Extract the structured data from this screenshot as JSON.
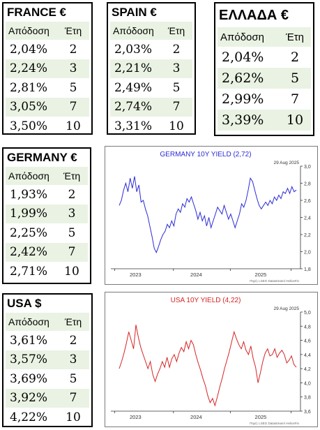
{
  "tables": {
    "france": {
      "title": "FRANCE €",
      "h1": "Απόδοση",
      "h2": "Έτη",
      "rows": [
        {
          "y": "2,04%",
          "t": "2"
        },
        {
          "y": "2,24%",
          "t": "3"
        },
        {
          "y": "2,81%",
          "t": "5"
        },
        {
          "y": "3,05%",
          "t": "7"
        },
        {
          "y": "3,50%",
          "t": "10"
        }
      ]
    },
    "spain": {
      "title": "SPAIN €",
      "h1": "Απόδοση",
      "h2": "Έτη",
      "rows": [
        {
          "y": "2,03%",
          "t": "2"
        },
        {
          "y": "2,21%",
          "t": "3"
        },
        {
          "y": "2,49%",
          "t": "5"
        },
        {
          "y": "2,74%",
          "t": "7"
        },
        {
          "y": "3,31%",
          "t": "10"
        }
      ]
    },
    "greece": {
      "title": "ΕΛΛΑΔΑ €",
      "h1": "Απόδοση",
      "h2": "Έτη",
      "rows": [
        {
          "y": "2,04%",
          "t": "2"
        },
        {
          "y": "2,62%",
          "t": "5"
        },
        {
          "y": "2,99%",
          "t": "7"
        },
        {
          "y": "3,39%",
          "t": "10"
        }
      ]
    },
    "germany": {
      "title": "GERMANY €",
      "h1": "Απόδοση",
      "h2": "Έτη",
      "rows": [
        {
          "y": "1,93%",
          "t": "2"
        },
        {
          "y": "1,99%",
          "t": "3"
        },
        {
          "y": "2,25%",
          "t": "5"
        },
        {
          "y": "2,42%",
          "t": "7"
        },
        {
          "y": "2,71%",
          "t": "10"
        }
      ]
    },
    "usa": {
      "title": "USA $",
      "h1": "Απόδοση",
      "h2": "Έτη",
      "rows": [
        {
          "y": "3,61%",
          "t": "2"
        },
        {
          "y": "3,57%",
          "t": "3"
        },
        {
          "y": "3,69%",
          "t": "5"
        },
        {
          "y": "3,92%",
          "t": "7"
        },
        {
          "y": "4,22%",
          "t": "10"
        }
      ]
    }
  },
  "chart_data": [
    {
      "type": "line",
      "title": "GERMANY 10Y YIELD  (2,72)",
      "date": "29 Aug 2025",
      "source": "Πηγή: LSEG Datastream/ HeliosFin",
      "color": "#2b2bd6",
      "ylim": [
        1.8,
        3.0
      ],
      "yticks": [
        "3,0",
        "2,8",
        "2,6",
        "2,4",
        "2,2",
        "2,0",
        "1,8"
      ],
      "xlabels": [
        "2023",
        "2024",
        "2025"
      ],
      "y": [
        2.54,
        2.6,
        2.72,
        2.8,
        2.7,
        2.86,
        2.74,
        2.88,
        2.7,
        2.78,
        2.58,
        2.6,
        2.5,
        2.42,
        2.3,
        2.18,
        2.04,
        1.99,
        2.06,
        2.14,
        2.2,
        2.24,
        2.32,
        2.28,
        2.36,
        2.3,
        2.44,
        2.5,
        2.46,
        2.56,
        2.52,
        2.62,
        2.58,
        2.64,
        2.56,
        2.48,
        2.38,
        2.46,
        2.36,
        2.42,
        2.3,
        2.4,
        2.28,
        2.36,
        2.44,
        2.52,
        2.48,
        2.44,
        2.54,
        2.46,
        2.38,
        2.44,
        2.36,
        2.28,
        2.36,
        2.44,
        2.56,
        2.52,
        2.6,
        2.72,
        2.86,
        2.82,
        2.72,
        2.62,
        2.54,
        2.5,
        2.54,
        2.58,
        2.54,
        2.6,
        2.56,
        2.64,
        2.6,
        2.66,
        2.62,
        2.7,
        2.68,
        2.74,
        2.68,
        2.76,
        2.7,
        2.72
      ]
    },
    {
      "type": "line",
      "title": "USA 10Y YIELD  (4,22)",
      "date": "29 Aug 2025",
      "source": "Πηγή: LSEG Datastream/ HeliosFin",
      "color": "#d62424",
      "ylim": [
        3.6,
        5.0
      ],
      "yticks": [
        "5,0",
        "4,8",
        "4,6",
        "4,4",
        "4,2",
        "4,0",
        "3,8",
        "3,6"
      ],
      "xlabels": [
        "2023",
        "2024",
        "2025"
      ],
      "y": [
        4.2,
        4.3,
        4.42,
        4.56,
        4.72,
        4.6,
        4.48,
        4.82,
        4.64,
        4.5,
        4.4,
        4.3,
        4.2,
        4.3,
        4.12,
        4.02,
        4.12,
        4.2,
        4.3,
        4.22,
        4.36,
        4.22,
        4.34,
        4.4,
        4.3,
        4.42,
        4.5,
        4.44,
        4.58,
        4.48,
        4.6,
        4.54,
        4.4,
        4.28,
        4.18,
        4.06,
        3.96,
        3.82,
        3.72,
        3.78,
        3.68,
        3.8,
        3.94,
        4.06,
        4.2,
        4.32,
        4.44,
        4.58,
        4.72,
        4.62,
        4.54,
        4.48,
        4.58,
        4.46,
        4.4,
        4.52,
        4.34,
        4.22,
        4.0,
        4.14,
        4.3,
        4.42,
        4.48,
        4.38,
        4.4,
        4.48,
        4.36,
        4.42,
        4.46,
        4.4,
        4.28,
        4.32,
        4.38,
        4.26,
        4.22
      ]
    }
  ]
}
